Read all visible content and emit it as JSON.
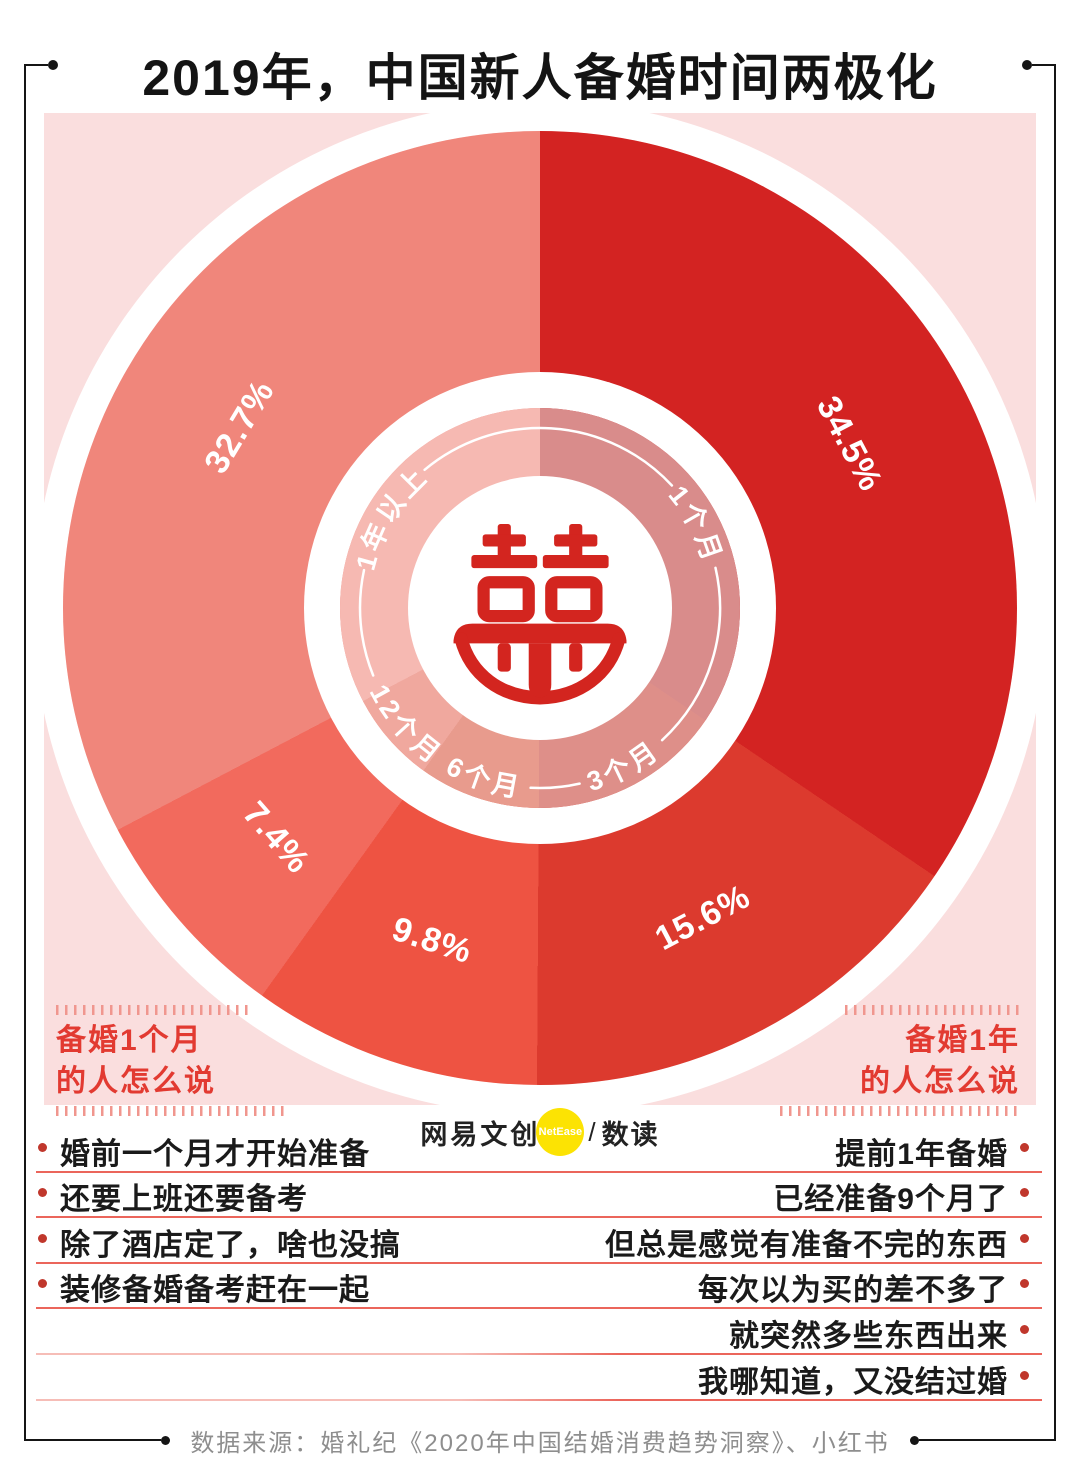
{
  "title": "2019年，中国新人备婚时间两极化",
  "chart_data": {
    "type": "pie",
    "title": "2019年，中国新人备婚时间两极化",
    "unit": "%",
    "start_angle_deg": 0,
    "clockwise": true,
    "center_symbol": "囍 (double happiness)",
    "segments": [
      {
        "label": "1个月",
        "value": 34.5,
        "color": "#D32322",
        "color_light": "#D98C8B"
      },
      {
        "label": "3个月",
        "value": 15.6,
        "color": "#DC3A2E",
        "color_light": "#DE8F89"
      },
      {
        "label": "6个月",
        "value": 9.8,
        "color": "#EE5342",
        "color_light": "#E89B8D"
      },
      {
        "label": "12个月",
        "value": 7.4,
        "color": "#F26A5D",
        "color_light": "#F0A89E"
      },
      {
        "label": "1年以上",
        "value": 32.7,
        "color": "#F0867B",
        "color_light": "#F6B9B2"
      }
    ]
  },
  "left_panel": {
    "heading_line1": "备婚1个月",
    "heading_line2": "的人怎么说",
    "quotes": [
      "婚前一个月才开始准备",
      "还要上班还要备考",
      "除了酒店定了，啥也没搞",
      "装修备婚备考赶在一起"
    ]
  },
  "right_panel": {
    "heading_line1": "备婚1年",
    "heading_line2": "的人怎么说",
    "quotes": [
      "提前1年备婚",
      "已经准备9个月了",
      "但总是感觉有准备不完的东西",
      "每次以为买的差不多了",
      "就突然多些东西出来",
      "我哪知道，又没结过婚"
    ]
  },
  "logo": {
    "brand": "网易文创",
    "badge": "NetEase",
    "separator": "/",
    "product": "数读"
  },
  "footer": {
    "source": "数据来源：婚礼纪《2020年中国结婚消费趋势洞察》、小红书"
  },
  "colors": {
    "background_square": "#FADEDE",
    "heading_red": "#E23A31",
    "row_line": "#EB655B",
    "bullet": "#C0372C",
    "footer_gray": "#8E8E8E",
    "frame_black": "#151515",
    "logo_yellow": "#FCE303",
    "center_symbol_red": "#D3251F"
  }
}
